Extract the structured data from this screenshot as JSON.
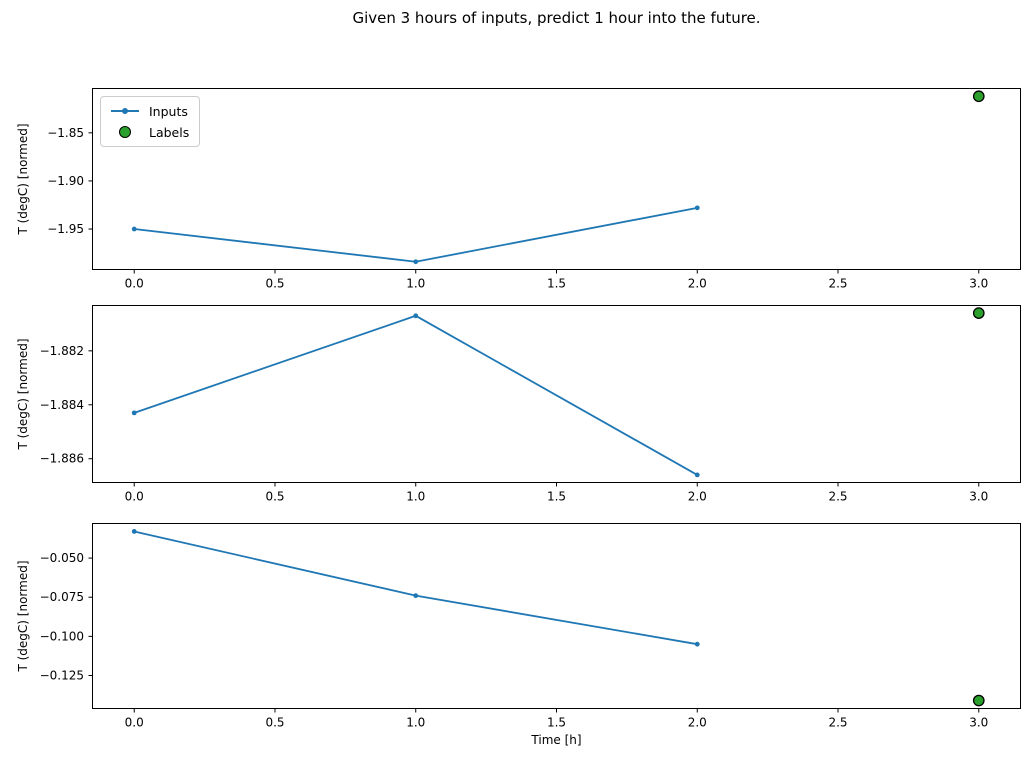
{
  "figure": {
    "title": "Given 3 hours of inputs, predict 1 hour into the future."
  },
  "colors": {
    "inputs_line": "#1f77b4",
    "labels_fill": "#2ca02c",
    "labels_edge": "#000000",
    "axis": "#000000",
    "legend_border": "#cccccc"
  },
  "legend": {
    "items": [
      {
        "label": "Inputs",
        "kind": "line"
      },
      {
        "label": "Labels",
        "kind": "scatter"
      }
    ]
  },
  "xlabel": "Time [h]",
  "chart_data": [
    {
      "type": "line",
      "ylabel": "T (degC) [normed]",
      "xlim": [
        -0.15,
        3.15
      ],
      "ylim": [
        -1.9926,
        -1.8034
      ],
      "xticks": [
        {
          "v": 0.0,
          "label": "0.0"
        },
        {
          "v": 0.5,
          "label": "0.5"
        },
        {
          "v": 1.0,
          "label": "1.0"
        },
        {
          "v": 1.5,
          "label": "1.5"
        },
        {
          "v": 2.0,
          "label": "2.0"
        },
        {
          "v": 2.5,
          "label": "2.5"
        },
        {
          "v": 3.0,
          "label": "3.0"
        }
      ],
      "yticks": [
        {
          "v": -1.85,
          "label": "−1.85"
        },
        {
          "v": -1.9,
          "label": "−1.90"
        },
        {
          "v": -1.95,
          "label": "−1.95"
        }
      ],
      "series": [
        {
          "name": "Inputs",
          "kind": "line",
          "x": [
            0,
            1,
            2
          ],
          "y": [
            -1.95,
            -1.984,
            -1.928
          ]
        },
        {
          "name": "Labels",
          "kind": "scatter",
          "x": [
            3
          ],
          "y": [
            -1.812
          ]
        }
      ]
    },
    {
      "type": "line",
      "ylabel": "T (degC) [normed]",
      "xlim": [
        -0.15,
        3.15
      ],
      "ylim": [
        -1.8869,
        -1.8803
      ],
      "xticks": [
        {
          "v": 0.0,
          "label": "0.0"
        },
        {
          "v": 0.5,
          "label": "0.5"
        },
        {
          "v": 1.0,
          "label": "1.0"
        },
        {
          "v": 1.5,
          "label": "1.5"
        },
        {
          "v": 2.0,
          "label": "2.0"
        },
        {
          "v": 2.5,
          "label": "2.5"
        },
        {
          "v": 3.0,
          "label": "3.0"
        }
      ],
      "yticks": [
        {
          "v": -1.882,
          "label": "−1.882"
        },
        {
          "v": -1.884,
          "label": "−1.884"
        },
        {
          "v": -1.886,
          "label": "−1.886"
        }
      ],
      "series": [
        {
          "name": "Inputs",
          "kind": "line",
          "x": [
            0,
            1,
            2
          ],
          "y": [
            -1.8843,
            -1.8807,
            -1.8866
          ]
        },
        {
          "name": "Labels",
          "kind": "scatter",
          "x": [
            3
          ],
          "y": [
            -1.8806
          ]
        }
      ]
    },
    {
      "type": "line",
      "ylabel": "T (degC) [normed]",
      "xlabel": "Time [h]",
      "xlim": [
        -0.15,
        3.15
      ],
      "ylim": [
        -0.1464,
        -0.0276
      ],
      "xticks": [
        {
          "v": 0.0,
          "label": "0.0"
        },
        {
          "v": 0.5,
          "label": "0.5"
        },
        {
          "v": 1.0,
          "label": "1.0"
        },
        {
          "v": 1.5,
          "label": "1.5"
        },
        {
          "v": 2.0,
          "label": "2.0"
        },
        {
          "v": 2.5,
          "label": "2.5"
        },
        {
          "v": 3.0,
          "label": "3.0"
        }
      ],
      "yticks": [
        {
          "v": -0.05,
          "label": "−0.050"
        },
        {
          "v": -0.075,
          "label": "−0.075"
        },
        {
          "v": -0.1,
          "label": "−0.100"
        },
        {
          "v": -0.125,
          "label": "−0.125"
        }
      ],
      "series": [
        {
          "name": "Inputs",
          "kind": "line",
          "x": [
            0,
            1,
            2
          ],
          "y": [
            -0.033,
            -0.074,
            -0.105
          ]
        },
        {
          "name": "Labels",
          "kind": "scatter",
          "x": [
            3
          ],
          "y": [
            -0.141
          ]
        }
      ]
    }
  ]
}
